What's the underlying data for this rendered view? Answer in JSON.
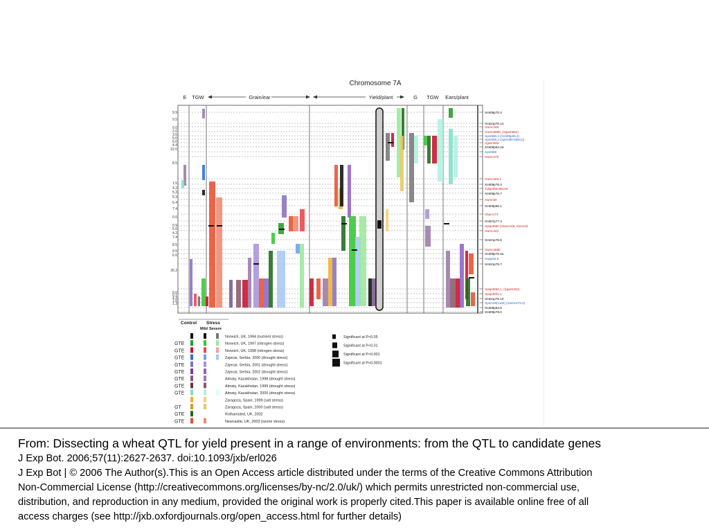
{
  "figure": {
    "title": "Chromosome 7A",
    "header_labels": [
      "E",
      "TGW",
      "Grain/ear",
      "Yield/plant",
      "G",
      "TGW",
      "Ears/plant"
    ],
    "lod_values": [
      "9.9",
      "9.5",
      "0.0",
      "2.0",
      "3.5",
      "5.0",
      "6.0",
      "4.4",
      "22.0",
      "8.5",
      "1.5",
      "4.2",
      "5.3",
      "5.3",
      "6.4",
      "7.4",
      "0.0",
      "0.9",
      "5.0",
      "4.2",
      "7.4",
      "8.5",
      "9.5",
      "6.6",
      "26.2",
      "0.0",
      "0.1",
      "4.3",
      "1.5",
      "1.3"
    ],
    "markers": [
      {
        "name": "Xmt09p70.4",
        "color": "#000000"
      },
      {
        "name": "Xmt21p70.14",
        "color": "#000000"
      },
      {
        "name": "Xwmc158",
        "color": "#d42020"
      },
      {
        "name": "Xwmc598b, (Xgwm681)",
        "color": "#d42020"
      },
      {
        "name": "Xpsr680.2 (Xmt09p65.4)",
        "color": "#3060c0"
      },
      {
        "name": "Xpsr596.2 (Xpsr490.8(Bs1))",
        "color": "#3060c0"
      },
      {
        "name": "Xgwm60a",
        "color": "#d42020"
      },
      {
        "name": "Xmt09p64.2a",
        "color": "#000000"
      },
      {
        "name": "Xpsr569",
        "color": "#3060c0"
      },
      {
        "name": "Xwmc479",
        "color": "#d42020"
      },
      {
        "name": "Xwmc283.1",
        "color": "#d42020"
      },
      {
        "name": "Xmt09p76.4",
        "color": "#000000"
      },
      {
        "name": "Xdiq209n4BU16",
        "color": "#d42020"
      },
      {
        "name": "Xmt09p76.7",
        "color": "#000000"
      },
      {
        "name": "Xwmc60",
        "color": "#d42020"
      },
      {
        "name": "Xmt09p65.1",
        "color": "#000000"
      },
      {
        "name": "Xbarc174",
        "color": "#d42020"
      },
      {
        "name": "Xmt07p77.4",
        "color": "#000000"
      },
      {
        "name": "Xpsp3050 (Xbarc108, Xwmc9)",
        "color": "#d42020"
      },
      {
        "name": "Xwmc422",
        "color": "#d42020"
      },
      {
        "name": "Xmt21p76.6",
        "color": "#000000"
      },
      {
        "name": "Xwmc488b",
        "color": "#d42020"
      },
      {
        "name": "Xmt09p76.2a",
        "color": "#000000"
      },
      {
        "name": "Xwg232.6",
        "color": "#3060c0"
      },
      {
        "name": "Xmt21p76.7",
        "color": "#000000"
      },
      {
        "name": "Xpsp3094.1, (Xgwm332)",
        "color": "#d42020"
      },
      {
        "name": "Xpsp3001.1",
        "color": "#d42020"
      },
      {
        "name": "Xmt21p76.13",
        "color": "#000000"
      },
      {
        "name": "Xpsr148(Cat2) (Xwmc273.3)",
        "color": "#3060c0"
      },
      {
        "name": "Xmt09p64.8",
        "color": "#000000"
      },
      {
        "name": "Xmt09p76.0",
        "color": "#000000"
      }
    ],
    "legend": {
      "header_control": "Control",
      "header_stress": "Stress",
      "header_mild": "Mild",
      "header_severe": "Severe",
      "rows": [
        {
          "tag": "",
          "label": "Norwich, UK, 1994 (nutrient stress)",
          "colors": [
            "#111111",
            "#111111",
            "#777777"
          ]
        },
        {
          "tag": "GTE",
          "label": "Norwich, UK, 1997 (nitrogen stress)",
          "colors": [
            "#2a9a2a",
            "#34c634",
            "#9be89b"
          ]
        },
        {
          "tag": "GTE",
          "label": "Norwich, UK, 1998 (nitrogen stress)",
          "colors": [
            "#c8102e",
            "#e8464c",
            "#f2a0a0"
          ]
        },
        {
          "tag": "GTE",
          "label": "Zajecar, Serbia, 2000 (drought stress)",
          "colors": [
            "#2c6fd1",
            "#6da0ea",
            "#a8c8f5"
          ]
        },
        {
          "tag": "GTE",
          "label": "Zajecar, Serbia, 2001 (drought stress)",
          "colors": [
            "#8a6fc0",
            "#a993d8",
            ""
          ]
        },
        {
          "tag": "GTE",
          "label": "Zajecar, Serbia, 2002 (drought stress)",
          "colors": [
            "#6b3fa0",
            "#8f63c4",
            ""
          ]
        },
        {
          "tag": "GTE",
          "label": "Almaty, Kazakhstan, 1998 (drought stress)",
          "colors": [
            "#7a5a8a",
            "#9b7aa9",
            ""
          ]
        },
        {
          "tag": "GTE",
          "label": "Almaty, Kazakhstan, 1999 (drought stress)",
          "colors": [
            "#5c3a4a",
            "#8a5a6a",
            ""
          ]
        },
        {
          "tag": "GTE",
          "label": "Almaty, Kazakhstan, 2000 (drought stress)",
          "colors": [
            "#7fe0c8",
            "#b0f0e0",
            "#d8fff4"
          ]
        },
        {
          "tag": "",
          "label": "Zaragoza, Spain, 1999 (salt stress)",
          "colors": [
            "#f0b030",
            "#f7d070",
            ""
          ]
        },
        {
          "tag": "GT",
          "label": "Zaragoza, Spain, 2000 (salt stress)",
          "colors": [
            "#d0a020",
            "#e8c860",
            ""
          ]
        },
        {
          "tag": "GTE",
          "label": "Rothamsted, UK, 2002",
          "colors": [
            "#1f6a1f",
            "",
            ""
          ]
        },
        {
          "tag": "GTE",
          "label": "Newcastle, UK, 2003 (ozone stress)",
          "colors": [
            "#e85030",
            "#f08a70",
            ""
          ]
        }
      ],
      "significance": [
        {
          "label": "Significant at P<0.05",
          "level": 1
        },
        {
          "label": "Significant at P<0.01",
          "level": 2
        },
        {
          "label": "Significant at P<0.001",
          "level": 3
        },
        {
          "label": "Significant at P<0.0001",
          "level": 4
        }
      ]
    }
  },
  "caption": {
    "title": "From: Dissecting a wheat QTL for yield present in a range of environments: from the QTL to candidate genes",
    "citation": "J Exp Bot. 2006;57(11):2627-2637. doi:10.1093/jxb/erl026",
    "license_lines": [
      "J Exp Bot | © 2006 The Author(s).This is an Open Access article distributed under the terms of the Creative Commons Attribution",
      "Non-Commercial License (http://creativecommons.org/licenses/by-nc/2.0/uk/) which permits unrestricted non-commercial use,",
      "distribution, and reproduction in any medium, provided the original work is properly cited.This paper is available online free of all",
      "access charges (see http://jxb.oxfordjournals.org/open_access.html for further details)"
    ]
  }
}
